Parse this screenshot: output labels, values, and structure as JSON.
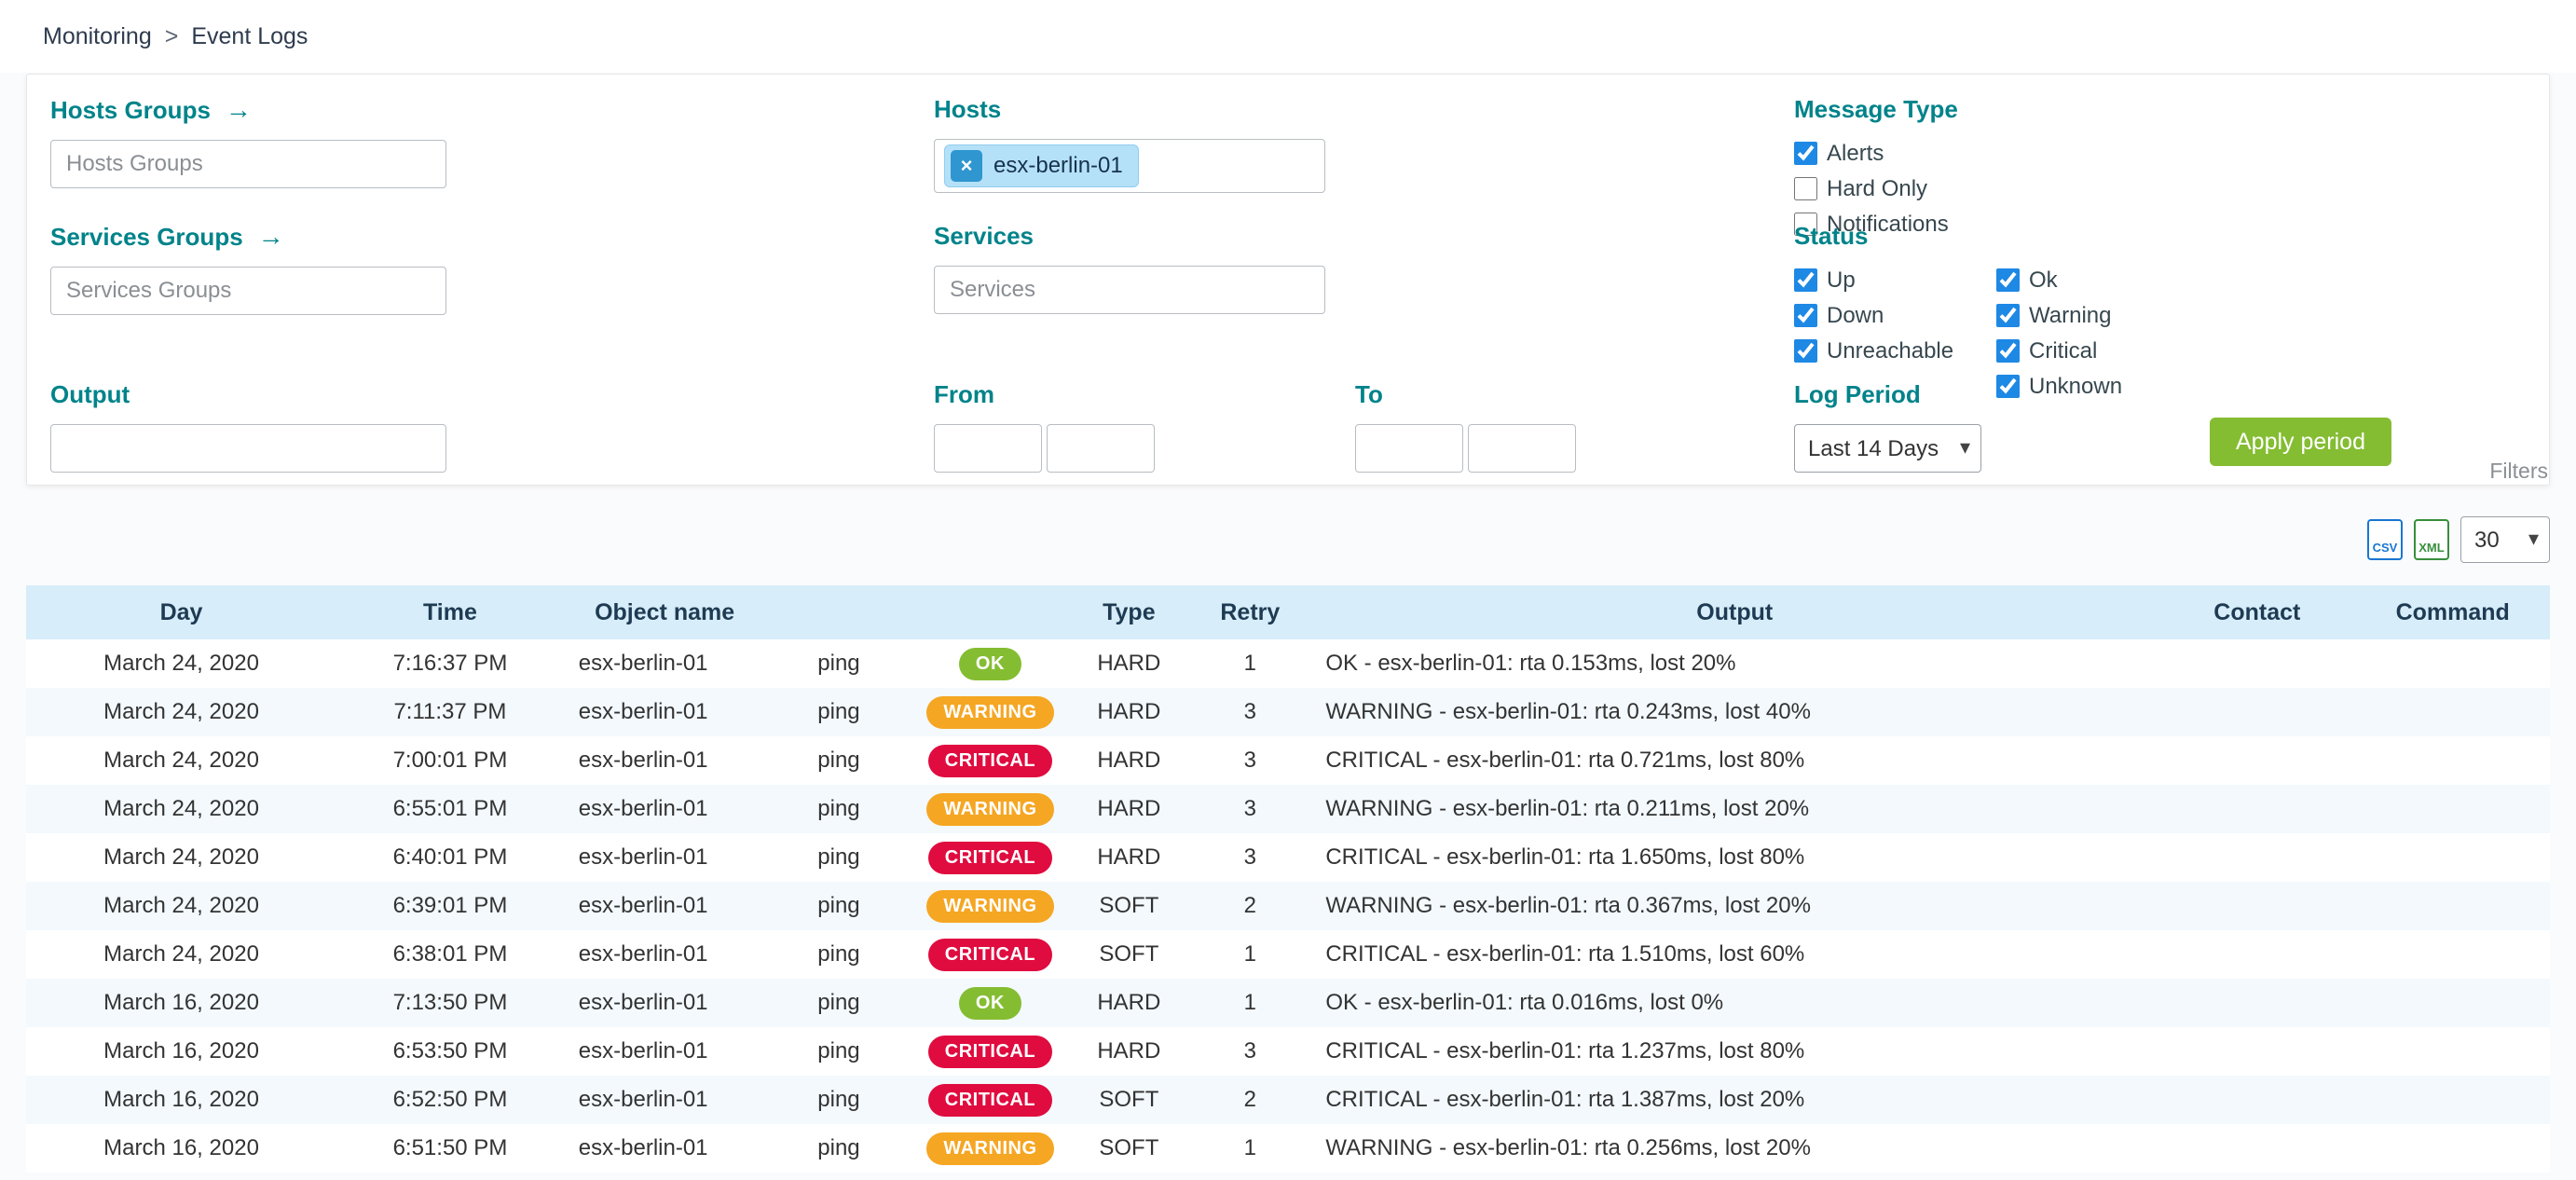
{
  "breadcrumb": {
    "items": [
      "Monitoring",
      "Event Logs"
    ],
    "separator": ">"
  },
  "icons": {
    "arrow_right": "→",
    "chevron_down": "▾",
    "remove": "×"
  },
  "filters": {
    "hosts_groups": {
      "label": "Hosts Groups",
      "placeholder": "Hosts Groups"
    },
    "services_groups": {
      "label": "Services Groups",
      "placeholder": "Services Groups"
    },
    "hosts": {
      "label": "Hosts",
      "chip": "esx-berlin-01"
    },
    "services": {
      "label": "Services",
      "placeholder": "Services"
    },
    "output": {
      "label": "Output",
      "value": ""
    },
    "from": {
      "label": "From"
    },
    "to": {
      "label": "To"
    },
    "message_type": {
      "label": "Message Type",
      "items": [
        {
          "label": "Alerts",
          "checked": true
        },
        {
          "label": "Hard Only",
          "checked": false
        },
        {
          "label": "Notifications",
          "checked": false
        }
      ]
    },
    "status": {
      "label": "Status",
      "columns": [
        [
          {
            "label": "Up",
            "checked": true
          },
          {
            "label": "Down",
            "checked": true
          },
          {
            "label": "Unreachable",
            "checked": true
          }
        ],
        [
          {
            "label": "Ok",
            "checked": true
          },
          {
            "label": "Warning",
            "checked": true
          },
          {
            "label": "Critical",
            "checked": true
          },
          {
            "label": "Unknown",
            "checked": true
          }
        ]
      ]
    },
    "log_period": {
      "label": "Log Period",
      "value": "Last 14 Days"
    },
    "apply_label": "Apply period",
    "filters_tab_label": "Filters"
  },
  "toolbar": {
    "csv_label": "CSV",
    "xml_label": "XML",
    "page_size": "30"
  },
  "table": {
    "headers": [
      "Day",
      "Time",
      "Object name",
      "",
      "",
      "Type",
      "Retry",
      "Output",
      "Contact",
      "Command"
    ],
    "rows": [
      {
        "day": "March 24, 2020",
        "time": "7:16:37 PM",
        "object_name": "esx-berlin-01",
        "service": "ping",
        "status": "OK",
        "type": "HARD",
        "retry": "1",
        "output": "OK - esx-berlin-01: rta 0.153ms, lost 20%",
        "contact": "",
        "command": ""
      },
      {
        "day": "March 24, 2020",
        "time": "7:11:37 PM",
        "object_name": "esx-berlin-01",
        "service": "ping",
        "status": "WARNING",
        "type": "HARD",
        "retry": "3",
        "output": "WARNING - esx-berlin-01: rta 0.243ms, lost 40%",
        "contact": "",
        "command": ""
      },
      {
        "day": "March 24, 2020",
        "time": "7:00:01 PM",
        "object_name": "esx-berlin-01",
        "service": "ping",
        "status": "CRITICAL",
        "type": "HARD",
        "retry": "3",
        "output": "CRITICAL - esx-berlin-01: rta 0.721ms, lost 80%",
        "contact": "",
        "command": ""
      },
      {
        "day": "March 24, 2020",
        "time": "6:55:01 PM",
        "object_name": "esx-berlin-01",
        "service": "ping",
        "status": "WARNING",
        "type": "HARD",
        "retry": "3",
        "output": "WARNING - esx-berlin-01: rta 0.211ms, lost 20%",
        "contact": "",
        "command": ""
      },
      {
        "day": "March 24, 2020",
        "time": "6:40:01 PM",
        "object_name": "esx-berlin-01",
        "service": "ping",
        "status": "CRITICAL",
        "type": "HARD",
        "retry": "3",
        "output": "CRITICAL - esx-berlin-01: rta 1.650ms, lost 80%",
        "contact": "",
        "command": ""
      },
      {
        "day": "March 24, 2020",
        "time": "6:39:01 PM",
        "object_name": "esx-berlin-01",
        "service": "ping",
        "status": "WARNING",
        "type": "SOFT",
        "retry": "2",
        "output": "WARNING - esx-berlin-01: rta 0.367ms, lost 20%",
        "contact": "",
        "command": ""
      },
      {
        "day": "March 24, 2020",
        "time": "6:38:01 PM",
        "object_name": "esx-berlin-01",
        "service": "ping",
        "status": "CRITICAL",
        "type": "SOFT",
        "retry": "1",
        "output": "CRITICAL - esx-berlin-01: rta 1.510ms, lost 60%",
        "contact": "",
        "command": ""
      },
      {
        "day": "March 16, 2020",
        "time": "7:13:50 PM",
        "object_name": "esx-berlin-01",
        "service": "ping",
        "status": "OK",
        "type": "HARD",
        "retry": "1",
        "output": "OK - esx-berlin-01: rta 0.016ms, lost 0%",
        "contact": "",
        "command": ""
      },
      {
        "day": "March 16, 2020",
        "time": "6:53:50 PM",
        "object_name": "esx-berlin-01",
        "service": "ping",
        "status": "CRITICAL",
        "type": "HARD",
        "retry": "3",
        "output": "CRITICAL - esx-berlin-01: rta 1.237ms, lost 80%",
        "contact": "",
        "command": ""
      },
      {
        "day": "March 16, 2020",
        "time": "6:52:50 PM",
        "object_name": "esx-berlin-01",
        "service": "ping",
        "status": "CRITICAL",
        "type": "SOFT",
        "retry": "2",
        "output": "CRITICAL - esx-berlin-01: rta 1.387ms, lost 20%",
        "contact": "",
        "command": ""
      },
      {
        "day": "March 16, 2020",
        "time": "6:51:50 PM",
        "object_name": "esx-berlin-01",
        "service": "ping",
        "status": "WARNING",
        "type": "SOFT",
        "retry": "1",
        "output": "WARNING - esx-berlin-01: rta 0.256ms, lost 20%",
        "contact": "",
        "command": ""
      }
    ]
  },
  "colors": {
    "accent_teal": "#00838a",
    "checkbox_blue": "#1e88e5",
    "apply_green": "#84bd32",
    "table_header_bg": "#d7edf9",
    "row_alt_bg": "#f3f9fd",
    "chip_bg": "#b5e1f8",
    "chip_remove_bg": "#2f96d0",
    "status_badges": {
      "OK": "#84bd32",
      "WARNING": "#f5a623",
      "CRITICAL": "#e00b3f"
    }
  }
}
